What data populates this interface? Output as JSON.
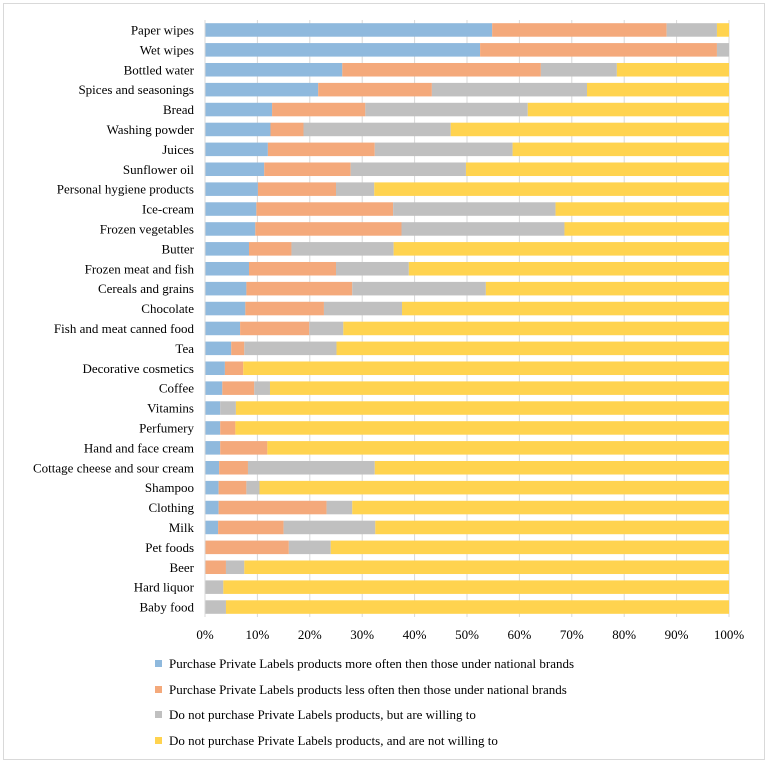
{
  "chart_data": {
    "type": "bar",
    "orientation": "horizontal",
    "stacked": "percent",
    "categories": [
      "Paper wipes",
      "Wet wipes",
      "Bottled water",
      "Spices and seasonings",
      "Bread",
      "Washing powder",
      "Juices",
      "Sunflower oil",
      "Personal hygiene products",
      "Ice-cream",
      "Frozen vegetables",
      "Butter",
      "Frozen meat and fish",
      "Cereals and grains",
      "Chocolate",
      "Fish and meat canned food",
      "Tea",
      "Decorative cosmetics",
      "Coffee",
      "Vitamins",
      "Perfumery",
      "Hand and face cream",
      "Cottage cheese and sour cream",
      "Shampoo",
      "Clothing",
      "Milk",
      "Pet foods",
      "Beer",
      "Hard liquor",
      "Baby food"
    ],
    "series": [
      {
        "name": "Purchase Private Labels products more often then those under national brands",
        "color": "#8fb9dd",
        "values": [
          54.8,
          52.5,
          26.2,
          21.6,
          12.8,
          12.5,
          12.0,
          11.3,
          10.1,
          9.8,
          9.6,
          8.4,
          8.4,
          7.9,
          7.7,
          6.7,
          5.0,
          3.8,
          3.3,
          2.9,
          2.9,
          2.9,
          2.7,
          2.6,
          2.6,
          2.5,
          0,
          0,
          0,
          0
        ]
      },
      {
        "name": "Purchase Private Labels products less often then those under national brands",
        "color": "#f4a97b",
        "values": [
          33.3,
          45.2,
          37.9,
          21.7,
          17.8,
          6.3,
          20.4,
          16.5,
          14.9,
          26.1,
          27.9,
          8.1,
          16.6,
          20.2,
          15.0,
          13.2,
          2.5,
          3.5,
          6.1,
          0,
          2.9,
          9.0,
          5.5,
          5.3,
          20.6,
          12.5,
          16.0,
          4.0,
          0,
          0
        ]
      },
      {
        "name": "Do not purchase Private Labels products, but are willing to",
        "color": "#c0c0c0",
        "values": [
          9.6,
          2.3,
          14.5,
          29.6,
          31.0,
          28.1,
          26.3,
          22.0,
          7.3,
          31.0,
          31.1,
          19.5,
          13.9,
          25.5,
          14.9,
          6.5,
          17.6,
          0,
          3.0,
          3.0,
          0,
          0,
          24.2,
          2.5,
          4.9,
          17.5,
          8.0,
          3.5,
          3.5,
          4.0
        ]
      },
      {
        "name": "Do not purchase Private Labels products, and are not willing to",
        "color": "#ffd34f",
        "values": [
          2.3,
          0,
          21.4,
          27.1,
          38.4,
          53.1,
          41.3,
          50.2,
          67.7,
          33.1,
          31.4,
          64.0,
          61.1,
          46.4,
          62.4,
          73.6,
          74.9,
          92.7,
          87.6,
          94.1,
          94.2,
          88.1,
          67.6,
          89.6,
          71.9,
          67.5,
          76.0,
          92.5,
          96.5,
          96.0
        ]
      }
    ],
    "xlim": [
      0,
      100
    ],
    "xticks": [
      "0%",
      "10%",
      "20%",
      "30%",
      "40%",
      "50%",
      "60%",
      "70%",
      "80%",
      "90%",
      "100%"
    ],
    "grid": "vertical",
    "legend_position": "bottom"
  }
}
